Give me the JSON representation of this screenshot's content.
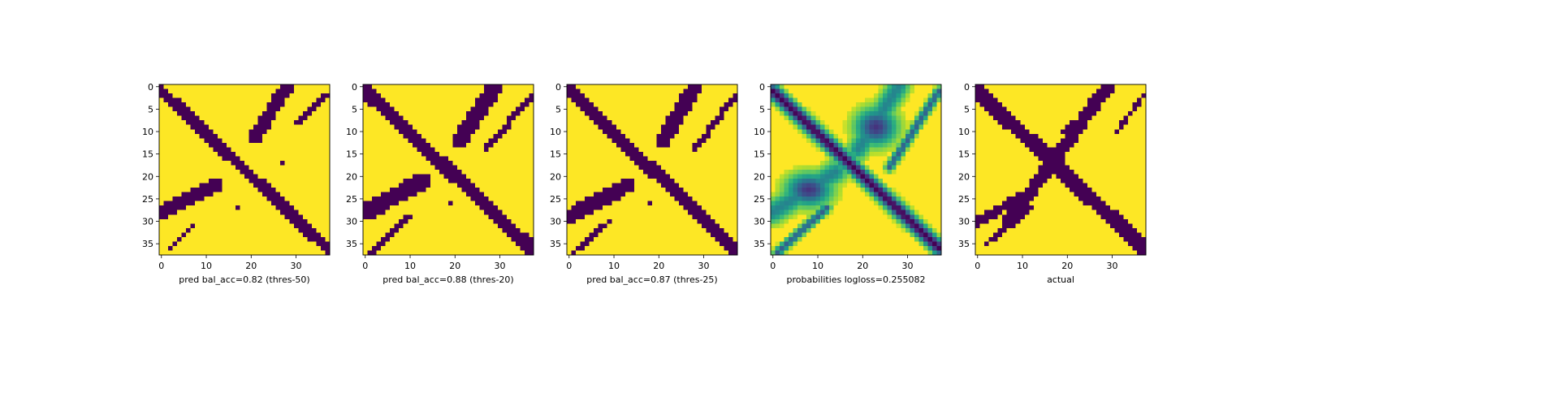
{
  "chart_data": [
    {
      "type": "heatmap",
      "subplot": 1,
      "xlabel": "pred bal_acc=0.82 (thres-50)",
      "grid_size": 38,
      "x_ticks": [
        0,
        10,
        20,
        30
      ],
      "y_ticks": [
        0,
        5,
        10,
        15,
        20,
        25,
        30,
        35
      ],
      "colormap": "viridis",
      "value_range": [
        0,
        1
      ],
      "band_color": "#440154",
      "background_color": "#fde725",
      "regions": [
        {
          "shape": "diagonal-band",
          "from": [
            0,
            1
          ],
          "to": [
            37,
            36
          ],
          "width": 2.6
        },
        {
          "shape": "band",
          "from": [
            28,
            0
          ],
          "to": [
            21,
            11
          ],
          "width": 3.0
        },
        {
          "shape": "band",
          "from": [
            37,
            2
          ],
          "to": [
            30,
            8
          ],
          "width": 1.4
        },
        {
          "shape": "band",
          "from": [
            12,
            22
          ],
          "to": [
            0,
            28
          ],
          "width": 3.2
        },
        {
          "shape": "band",
          "from": [
            7,
            31
          ],
          "to": [
            2,
            36
          ],
          "width": 1.2
        }
      ],
      "specks": [
        [
          27,
          17
        ],
        [
          17,
          27
        ]
      ]
    },
    {
      "type": "heatmap",
      "subplot": 2,
      "xlabel": "pred bal_acc=0.88 (thres-20)",
      "grid_size": 38,
      "x_ticks": [
        0,
        10,
        20,
        30
      ],
      "y_ticks": [
        0,
        5,
        10,
        15,
        20,
        25,
        30,
        35
      ],
      "colormap": "viridis",
      "value_range": [
        0,
        1
      ],
      "band_color": "#440154",
      "background_color": "#fde725",
      "regions": [
        {
          "shape": "diagonal-band",
          "from": [
            0,
            1
          ],
          "to": [
            37,
            36
          ],
          "width": 3.0
        },
        {
          "shape": "band",
          "from": [
            29,
            0
          ],
          "to": [
            21,
            12
          ],
          "width": 3.6
        },
        {
          "shape": "band",
          "from": [
            37,
            2
          ],
          "to": [
            27,
            14
          ],
          "width": 1.4
        },
        {
          "shape": "band",
          "from": [
            13,
            21
          ],
          "to": [
            0,
            28
          ],
          "width": 3.8
        },
        {
          "shape": "band",
          "from": [
            10,
            29
          ],
          "to": [
            1,
            37
          ],
          "width": 1.4
        }
      ],
      "specks": [
        [
          19,
          26
        ]
      ]
    },
    {
      "type": "heatmap",
      "subplot": 3,
      "xlabel": "pred bal_acc=0.87 (thres-25)",
      "grid_size": 38,
      "x_ticks": [
        0,
        10,
        20,
        30
      ],
      "y_ticks": [
        0,
        5,
        10,
        15,
        20,
        25,
        30,
        35
      ],
      "colormap": "viridis",
      "value_range": [
        0,
        1
      ],
      "band_color": "#440154",
      "background_color": "#fde725",
      "regions": [
        {
          "shape": "diagonal-band",
          "from": [
            0,
            1
          ],
          "to": [
            37,
            36
          ],
          "width": 2.9
        },
        {
          "shape": "band",
          "from": [
            28,
            0
          ],
          "to": [
            21,
            12
          ],
          "width": 3.4
        },
        {
          "shape": "band",
          "from": [
            37,
            2
          ],
          "to": [
            28,
            14
          ],
          "width": 1.3
        },
        {
          "shape": "band",
          "from": [
            13,
            22
          ],
          "to": [
            0,
            29
          ],
          "width": 3.4
        },
        {
          "shape": "band",
          "from": [
            9,
            30
          ],
          "to": [
            1,
            37
          ],
          "width": 1.3
        }
      ],
      "specks": [
        [
          18,
          26
        ]
      ]
    },
    {
      "type": "heatmap",
      "subplot": 4,
      "xlabel": "probabilities logloss=0.255082",
      "grid_size": 38,
      "x_ticks": [
        0,
        10,
        20,
        30
      ],
      "y_ticks": [
        0,
        5,
        10,
        15,
        20,
        25,
        30,
        35
      ],
      "colormap": "viridis",
      "value_range": [
        0,
        1
      ],
      "band_color": "#440154",
      "background_color": "#fde725",
      "continuous": true,
      "regions": [
        {
          "shape": "diagonal-band",
          "from": [
            0,
            1
          ],
          "to": [
            37,
            36
          ],
          "width": 1.6,
          "strength": 1.0
        },
        {
          "shape": "blob",
          "center": [
            23,
            9
          ],
          "radius": [
            5.0,
            4.5
          ],
          "strength": 0.85
        },
        {
          "shape": "blob",
          "center": [
            8,
            23
          ],
          "radius": [
            5.5,
            4.0
          ],
          "strength": 0.85
        },
        {
          "shape": "band",
          "from": [
            28,
            0
          ],
          "to": [
            19,
            14
          ],
          "width": 2.4,
          "strength": 0.55
        },
        {
          "shape": "band",
          "from": [
            14,
            19
          ],
          "to": [
            0,
            28
          ],
          "width": 2.6,
          "strength": 0.55
        },
        {
          "shape": "band",
          "from": [
            37,
            1
          ],
          "to": [
            26,
            18
          ],
          "width": 1.0,
          "strength": 0.7
        },
        {
          "shape": "band",
          "from": [
            12,
            27
          ],
          "to": [
            1,
            37
          ],
          "width": 1.0,
          "strength": 0.7
        }
      ],
      "specks": []
    },
    {
      "type": "heatmap",
      "subplot": 5,
      "xlabel": "actual",
      "grid_size": 38,
      "x_ticks": [
        0,
        10,
        20,
        30
      ],
      "y_ticks": [
        0,
        5,
        10,
        15,
        20,
        25,
        30,
        35
      ],
      "colormap": "viridis",
      "value_range": [
        0,
        1
      ],
      "band_color": "#440154",
      "background_color": "#fde725",
      "regions": [
        {
          "shape": "diagonal-band",
          "from": [
            0,
            1
          ],
          "to": [
            37,
            36
          ],
          "width": 3.4
        },
        {
          "shape": "band",
          "from": [
            29,
            0
          ],
          "to": [
            7,
            30
          ],
          "width": 3.0
        },
        {
          "shape": "band",
          "from": [
            37,
            2
          ],
          "to": [
            31,
            10
          ],
          "width": 1.0
        },
        {
          "shape": "band",
          "from": [
            26,
            5
          ],
          "to": [
            20,
            10
          ],
          "width": 2.0
        },
        {
          "shape": "band",
          "from": [
            11,
            24
          ],
          "to": [
            0,
            30
          ],
          "width": 2.2
        },
        {
          "shape": "band",
          "from": [
            12,
            27
          ],
          "to": [
            2,
            35
          ],
          "width": 1.0
        }
      ],
      "specks": []
    }
  ]
}
